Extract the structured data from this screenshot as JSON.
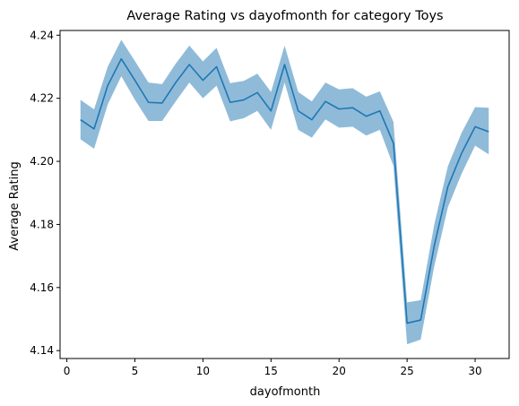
{
  "chart_data": {
    "type": "line",
    "title": "Average Rating vs dayofmonth for category Toys",
    "xlabel": "dayofmonth",
    "ylabel": "Average Rating",
    "xlim": [
      -0.5,
      32.5
    ],
    "ylim": [
      4.1375,
      4.2415
    ],
    "xticks": [
      0,
      5,
      10,
      15,
      20,
      25,
      30
    ],
    "yticks": [
      4.14,
      4.16,
      4.18,
      4.2,
      4.22,
      4.24
    ],
    "ytick_labels": [
      "4.14",
      "4.16",
      "4.18",
      "4.20",
      "4.22",
      "4.24"
    ],
    "grid": false,
    "series": [
      {
        "color": "#1f77b4",
        "band_color": "#1f77b4",
        "x": [
          1,
          2,
          3,
          4,
          5,
          6,
          7,
          8,
          9,
          10,
          11,
          12,
          13,
          14,
          15,
          16,
          17,
          18,
          19,
          20,
          21,
          22,
          23,
          24,
          25,
          26,
          27,
          28,
          29,
          30,
          31
        ],
        "values": [
          4.2132,
          4.2103,
          4.224,
          4.2325,
          4.2257,
          4.2187,
          4.2185,
          4.225,
          4.2307,
          4.2257,
          4.23,
          4.2187,
          4.2195,
          4.2218,
          4.216,
          4.2307,
          4.216,
          4.2132,
          4.219,
          4.2166,
          4.217,
          4.2143,
          4.216,
          4.2057,
          4.1487,
          4.1497,
          4.1733,
          4.192,
          4.2025,
          4.211,
          4.2094
        ],
        "lower": [
          4.207,
          4.204,
          4.218,
          4.227,
          4.2195,
          4.2128,
          4.2128,
          4.219,
          4.225,
          4.22,
          4.224,
          4.2127,
          4.2137,
          4.216,
          4.21,
          4.225,
          4.21,
          4.2075,
          4.2133,
          4.2107,
          4.211,
          4.2082,
          4.21,
          4.1985,
          4.142,
          4.1435,
          4.1668,
          4.1855,
          4.196,
          4.205,
          4.2022
        ],
        "upper": [
          4.2195,
          4.2165,
          4.23,
          4.2385,
          4.2318,
          4.225,
          4.2245,
          4.231,
          4.2367,
          4.2317,
          4.236,
          4.2248,
          4.2255,
          4.2278,
          4.222,
          4.2367,
          4.222,
          4.219,
          4.225,
          4.2228,
          4.2232,
          4.2205,
          4.2222,
          4.2125,
          4.1553,
          4.156,
          4.18,
          4.1985,
          4.209,
          4.2172,
          4.217
        ]
      }
    ]
  }
}
